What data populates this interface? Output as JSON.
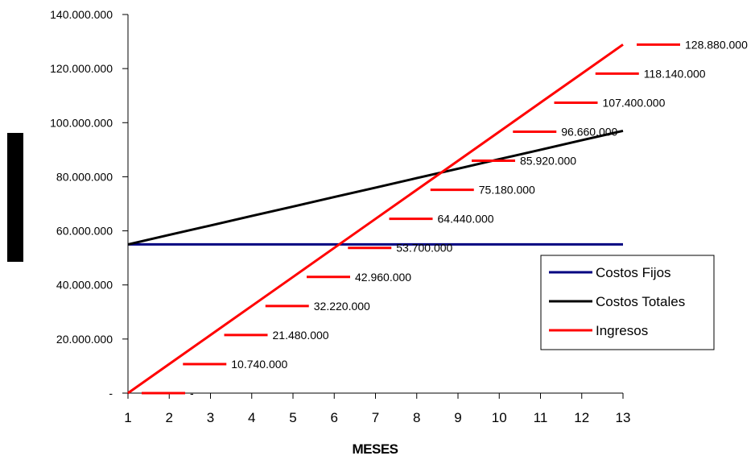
{
  "chart_data": {
    "type": "line",
    "title": "",
    "xlabel": "MESES",
    "ylabel": "",
    "x": [
      1,
      2,
      3,
      4,
      5,
      6,
      7,
      8,
      9,
      10,
      11,
      12,
      13
    ],
    "ylim": [
      0,
      140000000
    ],
    "ytick_values": [
      0,
      20000000,
      40000000,
      60000000,
      80000000,
      100000000,
      120000000,
      140000000
    ],
    "ytick_labels": [
      "-",
      "20.000.000",
      "40.000.000",
      "60.000.000",
      "80.000.000",
      "100.000.000",
      "120.000.000",
      "140.000.000"
    ],
    "xtick_labels": [
      "1",
      "2",
      "3",
      "4",
      "5",
      "6",
      "7",
      "8",
      "9",
      "10",
      "11",
      "12",
      "13"
    ],
    "series": [
      {
        "name": "Costos Fijos",
        "color": "#000080",
        "values": [
          55000000,
          55000000,
          55000000,
          55000000,
          55000000,
          55000000,
          55000000,
          55000000,
          55000000,
          55000000,
          55000000,
          55000000,
          55000000
        ]
      },
      {
        "name": "Costos Totales",
        "color": "#000000",
        "values": [
          55000000,
          58500000,
          62000000,
          65500000,
          69000000,
          72500000,
          76000000,
          79500000,
          83000000,
          86500000,
          90000000,
          93500000,
          97000000
        ]
      },
      {
        "name": "Ingresos",
        "color": "#ff0000",
        "values": [
          0,
          10740000,
          21480000,
          32220000,
          42960000,
          53700000,
          64440000,
          75180000,
          85920000,
          96660000,
          107400000,
          118140000,
          128880000
        ],
        "data_labels": [
          "-",
          "10.740.000",
          "21.480.000",
          "32.220.000",
          "42.960.000",
          "53.700.000",
          "64.440.000",
          "75.180.000",
          "85.920.000",
          "96.660.000",
          "107.400.000",
          "118.140.000",
          "128.880.000"
        ]
      }
    ],
    "grid": false,
    "legend_position": "right"
  }
}
